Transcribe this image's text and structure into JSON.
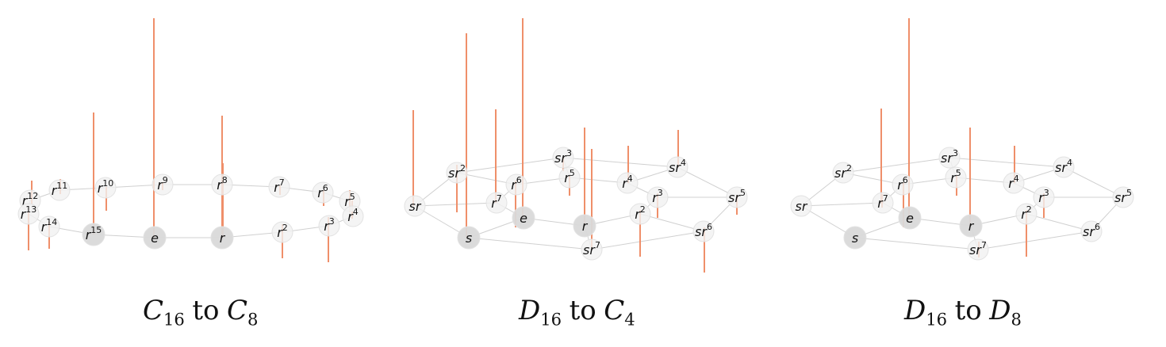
{
  "panels": [
    {
      "caption": {
        "from": "C",
        "from_sub": "16",
        "to_word": "to",
        "to": "C",
        "to_sub": "8"
      },
      "nodes": [
        {
          "b": "r",
          "e": "12"
        },
        {
          "b": "r",
          "e": "11"
        },
        {
          "b": "r",
          "e": "10"
        },
        {
          "b": "r",
          "e": "9"
        },
        {
          "b": "r",
          "e": "8"
        },
        {
          "b": "r",
          "e": "7"
        },
        {
          "b": "r",
          "e": "6"
        },
        {
          "b": "r",
          "e": "5"
        },
        {
          "b": "r",
          "e": "13"
        },
        {
          "b": "r",
          "e": "14"
        },
        {
          "b": "r",
          "e": "15"
        },
        {
          "b": "e",
          "e": ""
        },
        {
          "b": "r",
          "e": ""
        },
        {
          "b": "r",
          "e": "2"
        },
        {
          "b": "r",
          "e": "3"
        },
        {
          "b": "r",
          "e": "4"
        }
      ]
    },
    {
      "caption": {
        "from": "D",
        "from_sub": "16",
        "to_word": "to",
        "to": "C",
        "to_sub": "4"
      },
      "nodes": [
        {
          "b": "sr",
          "e": "2"
        },
        {
          "b": "sr",
          "e": "3"
        },
        {
          "b": "sr",
          "e": "4"
        },
        {
          "b": "sr",
          "e": ""
        },
        {
          "b": "r",
          "e": "7"
        },
        {
          "b": "r",
          "e": "6"
        },
        {
          "b": "r",
          "e": "5"
        },
        {
          "b": "r",
          "e": "4"
        },
        {
          "b": "r",
          "e": "3"
        },
        {
          "b": "sr",
          "e": "5"
        },
        {
          "b": "e",
          "e": ""
        },
        {
          "b": "r",
          "e": "2"
        },
        {
          "b": "s",
          "e": ""
        },
        {
          "b": "r",
          "e": ""
        },
        {
          "b": "sr",
          "e": "6"
        },
        {
          "b": "sr",
          "e": "7"
        }
      ]
    },
    {
      "caption": {
        "from": "D",
        "from_sub": "16",
        "to_word": "to",
        "to": "D",
        "to_sub": "8"
      },
      "nodes": [
        {
          "b": "sr",
          "e": "2"
        },
        {
          "b": "sr",
          "e": "3"
        },
        {
          "b": "sr",
          "e": "4"
        },
        {
          "b": "sr",
          "e": ""
        },
        {
          "b": "r",
          "e": "7"
        },
        {
          "b": "r",
          "e": "6"
        },
        {
          "b": "r",
          "e": "5"
        },
        {
          "b": "r",
          "e": "4"
        },
        {
          "b": "r",
          "e": "3"
        },
        {
          "b": "sr",
          "e": "5"
        },
        {
          "b": "e",
          "e": ""
        },
        {
          "b": "r",
          "e": "2"
        },
        {
          "b": "s",
          "e": ""
        },
        {
          "b": "r",
          "e": ""
        },
        {
          "b": "sr",
          "e": "6"
        },
        {
          "b": "sr",
          "e": "7"
        }
      ]
    }
  ],
  "colors": {
    "stem": "#ef8f6a",
    "edge": "#d0d0d0",
    "node_fill_light": "#f1f1f1",
    "node_fill_dark": "#d9d9d9",
    "node_stroke": "#e2e2e2",
    "label": "#111111"
  }
}
